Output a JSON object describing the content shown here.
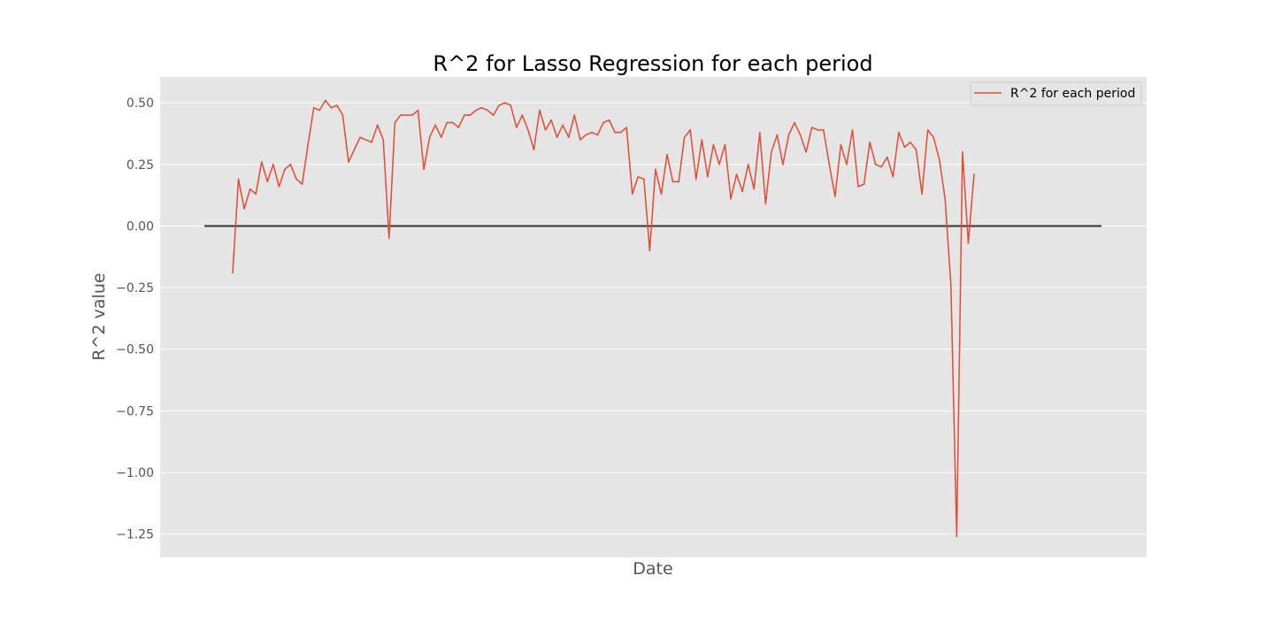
{
  "chart_data": {
    "type": "line",
    "title": "R^2 for Lasso Regression for each period",
    "xlabel": "Date",
    "ylabel": "R^2 value",
    "ylim": [
      -1.345,
      0.605
    ],
    "yticks": [
      0.5,
      0.25,
      0.0,
      -0.25,
      -0.5,
      -0.75,
      -1.0,
      -1.25
    ],
    "ytick_labels": [
      "0.50",
      "0.25",
      "0.00",
      "−0.25",
      "−0.50",
      "−0.75",
      "−1.00",
      "−1.25"
    ],
    "xtick_labels": [],
    "grid": true,
    "legend_position": "top-right",
    "colors": {
      "series": "#E24A33",
      "baseline": "#333333",
      "plot_background": "#E5E5E5",
      "grid": "#FFFFFF"
    },
    "baseline": {
      "value": 0.0
    },
    "series": [
      {
        "name": "R^2 for each period",
        "values": [
          -0.19,
          0.19,
          0.07,
          0.15,
          0.13,
          0.26,
          0.18,
          0.25,
          0.16,
          0.23,
          0.25,
          0.19,
          0.17,
          0.33,
          0.48,
          0.47,
          0.51,
          0.48,
          0.49,
          0.45,
          0.26,
          0.31,
          0.36,
          0.35,
          0.34,
          0.41,
          0.35,
          -0.05,
          0.42,
          0.45,
          0.45,
          0.45,
          0.47,
          0.23,
          0.36,
          0.41,
          0.36,
          0.42,
          0.42,
          0.4,
          0.45,
          0.45,
          0.47,
          0.48,
          0.47,
          0.45,
          0.49,
          0.5,
          0.49,
          0.4,
          0.45,
          0.39,
          0.31,
          0.47,
          0.39,
          0.43,
          0.36,
          0.41,
          0.36,
          0.45,
          0.35,
          0.37,
          0.38,
          0.37,
          0.42,
          0.43,
          0.38,
          0.38,
          0.4,
          0.13,
          0.2,
          0.19,
          -0.1,
          0.23,
          0.13,
          0.29,
          0.18,
          0.18,
          0.36,
          0.39,
          0.19,
          0.35,
          0.2,
          0.33,
          0.25,
          0.33,
          0.11,
          0.21,
          0.14,
          0.25,
          0.15,
          0.38,
          0.09,
          0.3,
          0.37,
          0.25,
          0.37,
          0.42,
          0.37,
          0.3,
          0.4,
          0.39,
          0.39,
          0.25,
          0.12,
          0.33,
          0.25,
          0.39,
          0.16,
          0.17,
          0.34,
          0.25,
          0.24,
          0.28,
          0.2,
          0.38,
          0.32,
          0.34,
          0.31,
          0.13,
          0.39,
          0.36,
          0.27,
          0.11,
          -0.24,
          -1.26,
          0.3,
          -0.07,
          0.21
        ]
      }
    ]
  }
}
